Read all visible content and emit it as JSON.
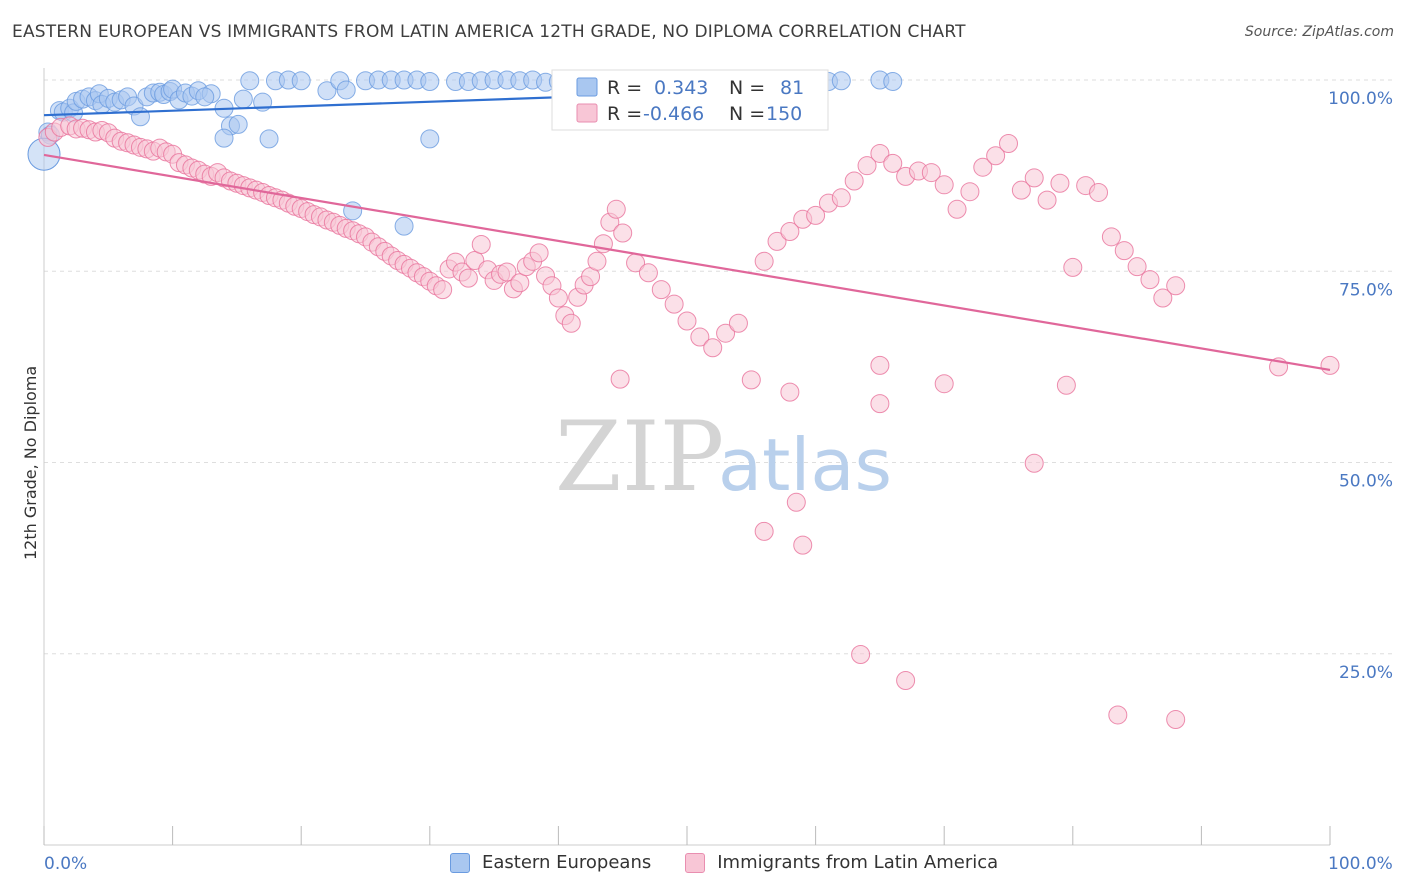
{
  "header": {
    "title": "EASTERN EUROPEAN VS IMMIGRANTS FROM LATIN AMERICA 12TH GRADE, NO DIPLOMA CORRELATION CHART",
    "source": "Source: ZipAtlas.com"
  },
  "watermark": {
    "zip": "ZIP",
    "atlas": "atlas"
  },
  "legend": {
    "r_label": "R =",
    "n_label": "N =",
    "rows": [
      {
        "r": "0.343",
        "n": "81",
        "color": "#5b8fd6"
      },
      {
        "r": "-0.466",
        "n": "150",
        "color": "#e8729b"
      }
    ]
  },
  "bottom_legend": [
    {
      "label": "Eastern Europeans",
      "color": "#a9c7f0",
      "border": "#6a9be0"
    },
    {
      "label": "Immigrants from Latin America",
      "color": "#f8c6d6",
      "border": "#e98eb0"
    }
  ],
  "chart_data": {
    "type": "scatter",
    "title": "EASTERN EUROPEAN VS IMMIGRANTS FROM LATIN AMERICA 12TH GRADE, NO DIPLOMA CORRELATION CHART",
    "xlabel": "",
    "ylabel": "12th Grade, No Diploma",
    "xlim": [
      0,
      100
    ],
    "ylim": [
      0,
      100
    ],
    "x_tick_labels": [
      "0.0%",
      "100.0%"
    ],
    "y_ticks": [
      25,
      50,
      75,
      100
    ],
    "y_tick_labels": [
      "25.0%",
      "50.0%",
      "75.0%",
      "100.0%"
    ],
    "grid": true,
    "legend_placement": "top-center",
    "series": [
      {
        "name": "Eastern Europeans",
        "color": "#6a9be0",
        "fill": "#a9c7f0",
        "r": 0.343,
        "n": 81,
        "trend": {
          "x": [
            0,
            58
          ],
          "y": [
            95.4,
            98.8
          ]
        },
        "points": [
          [
            0.3,
            93.2
          ],
          [
            0.5,
            92.8
          ],
          [
            1.2,
            96
          ],
          [
            1.5,
            95.8
          ],
          [
            2,
            96.3
          ],
          [
            2.3,
            95.7
          ],
          [
            2.5,
            97.2
          ],
          [
            3,
            97.5
          ],
          [
            3.5,
            97.8
          ],
          [
            4,
            97.3
          ],
          [
            4.3,
            98.2
          ],
          [
            4.5,
            96.8
          ],
          [
            5,
            97.6
          ],
          [
            5.5,
            97.1
          ],
          [
            6,
            97.4
          ],
          [
            6.5,
            97.8
          ],
          [
            7,
            96.6
          ],
          [
            7.5,
            95.2
          ],
          [
            8,
            97.8
          ],
          [
            8.5,
            98.3
          ],
          [
            9,
            98.4
          ],
          [
            9.3,
            98.1
          ],
          [
            9.8,
            98.5
          ],
          [
            10,
            98.8
          ],
          [
            10.5,
            97.4
          ],
          [
            11,
            98.3
          ],
          [
            11.5,
            97.9
          ],
          [
            12,
            98.6
          ],
          [
            13,
            98.2
          ],
          [
            14,
            96.3
          ],
          [
            14.5,
            94
          ],
          [
            15.1,
            94.2
          ],
          [
            15.5,
            97.5
          ],
          [
            16,
            99.9
          ],
          [
            17,
            97.1
          ],
          [
            18,
            99.9
          ],
          [
            19,
            100
          ],
          [
            20,
            99.9
          ],
          [
            22,
            98.6
          ],
          [
            23,
            99.9
          ],
          [
            23.5,
            98.7
          ],
          [
            25,
            99.9
          ],
          [
            26,
            100
          ],
          [
            27,
            100
          ],
          [
            28,
            100
          ],
          [
            29,
            100
          ],
          [
            30,
            99.8
          ],
          [
            32,
            99.8
          ],
          [
            33,
            99.8
          ],
          [
            34,
            99.9
          ],
          [
            35,
            100
          ],
          [
            36,
            100
          ],
          [
            37,
            99.9
          ],
          [
            38,
            100
          ],
          [
            39,
            99.7
          ],
          [
            40,
            99.8
          ],
          [
            41,
            99.9
          ],
          [
            42,
            99.8
          ],
          [
            43,
            98.5
          ],
          [
            44,
            98.7
          ],
          [
            45,
            100
          ],
          [
            47,
            99.9
          ],
          [
            48,
            99.8
          ],
          [
            50,
            99.8
          ],
          [
            52,
            99.9
          ],
          [
            54,
            99.8
          ],
          [
            55,
            99.6
          ],
          [
            56,
            99.2
          ],
          [
            57,
            99.5
          ],
          [
            59,
            99.6
          ],
          [
            60,
            100
          ],
          [
            61,
            99.8
          ],
          [
            62,
            99.9
          ],
          [
            65,
            100
          ],
          [
            66,
            99.8
          ],
          [
            12.5,
            97.8
          ],
          [
            14,
            92.4
          ],
          [
            17.5,
            92.3
          ],
          [
            24,
            82.9
          ],
          [
            28,
            80.9
          ],
          [
            30,
            92.3
          ]
        ]
      },
      {
        "name": "Immigrants from Latin America",
        "color": "#e8729b",
        "fill": "#f8c6d6",
        "r": -0.466,
        "n": 150,
        "trend": {
          "x": [
            0,
            100
          ],
          "y": [
            90.2,
            62.1
          ]
        },
        "points": [
          [
            0.3,
            92.5
          ],
          [
            0.8,
            93.2
          ],
          [
            1.3,
            93.8
          ],
          [
            2,
            94
          ],
          [
            2.5,
            93.6
          ],
          [
            3,
            93.7
          ],
          [
            3.5,
            93.5
          ],
          [
            4,
            93.2
          ],
          [
            4.5,
            93.4
          ],
          [
            5,
            93.1
          ],
          [
            5.5,
            92.4
          ],
          [
            6,
            92
          ],
          [
            6.5,
            91.8
          ],
          [
            7,
            91.5
          ],
          [
            7.5,
            91.2
          ],
          [
            8,
            91
          ],
          [
            8.5,
            90.7
          ],
          [
            9,
            91.1
          ],
          [
            9.5,
            90.6
          ],
          [
            10,
            90.3
          ],
          [
            10.5,
            89.2
          ],
          [
            11,
            88.9
          ],
          [
            11.5,
            88.5
          ],
          [
            12,
            88.2
          ],
          [
            12.5,
            87.7
          ],
          [
            13,
            87.4
          ],
          [
            13.5,
            87.9
          ],
          [
            14,
            87.2
          ],
          [
            14.5,
            86.8
          ],
          [
            15,
            86.5
          ],
          [
            15.5,
            86.2
          ],
          [
            16,
            85.9
          ],
          [
            16.5,
            85.6
          ],
          [
            17,
            85.3
          ],
          [
            17.5,
            84.9
          ],
          [
            18,
            84.6
          ],
          [
            18.5,
            84.3
          ],
          [
            19,
            83.9
          ],
          [
            19.5,
            83.5
          ],
          [
            20,
            83.2
          ],
          [
            20.5,
            82.8
          ],
          [
            21,
            82.4
          ],
          [
            21.5,
            82.1
          ],
          [
            22,
            81.7
          ],
          [
            22.5,
            81.4
          ],
          [
            23,
            81
          ],
          [
            23.5,
            80.6
          ],
          [
            24,
            80.3
          ],
          [
            24.5,
            79.9
          ],
          [
            25,
            79.5
          ],
          [
            25.5,
            78.8
          ],
          [
            26,
            78.2
          ],
          [
            26.5,
            77.6
          ],
          [
            27,
            77
          ],
          [
            27.5,
            76.4
          ],
          [
            28,
            75.9
          ],
          [
            28.5,
            75.4
          ],
          [
            29,
            74.8
          ],
          [
            29.5,
            74.3
          ],
          [
            30,
            73.7
          ],
          [
            30.5,
            73.1
          ],
          [
            31,
            72.6
          ],
          [
            31.5,
            75.3
          ],
          [
            32,
            76.2
          ],
          [
            32.5,
            74.9
          ],
          [
            33,
            74.1
          ],
          [
            33.5,
            76.4
          ],
          [
            34,
            78.5
          ],
          [
            34.5,
            75.2
          ],
          [
            35,
            73.8
          ],
          [
            35.5,
            74.6
          ],
          [
            36,
            74.9
          ],
          [
            36.5,
            72.7
          ],
          [
            37,
            73.5
          ],
          [
            37.5,
            75.6
          ],
          [
            38,
            76.3
          ],
          [
            38.5,
            77.4
          ],
          [
            39,
            74.4
          ],
          [
            39.5,
            73.1
          ],
          [
            40,
            71.5
          ],
          [
            40.5,
            69.2
          ],
          [
            41,
            68.2
          ],
          [
            41.5,
            71.6
          ],
          [
            42,
            73.2
          ],
          [
            42.5,
            74.3
          ],
          [
            43,
            76.3
          ],
          [
            43.5,
            78.6
          ],
          [
            44,
            81.4
          ],
          [
            44.5,
            83.1
          ],
          [
            45,
            80
          ],
          [
            46,
            76.1
          ],
          [
            47,
            74.8
          ],
          [
            48,
            72.6
          ],
          [
            49,
            70.7
          ],
          [
            50,
            68.5
          ],
          [
            51,
            66.4
          ],
          [
            52,
            65
          ],
          [
            53,
            66.9
          ],
          [
            54,
            68.2
          ],
          [
            55,
            60.8
          ],
          [
            56,
            76.3
          ],
          [
            57,
            78.9
          ],
          [
            58,
            80.2
          ],
          [
            59,
            81.8
          ],
          [
            60,
            82.3
          ],
          [
            61,
            83.9
          ],
          [
            62,
            84.6
          ],
          [
            63,
            86.8
          ],
          [
            64,
            88.8
          ],
          [
            65,
            90.4
          ],
          [
            66,
            89.1
          ],
          [
            67,
            87.4
          ],
          [
            68,
            88.1
          ],
          [
            69,
            87.9
          ],
          [
            70,
            86.3
          ],
          [
            71,
            83.1
          ],
          [
            72,
            85.4
          ],
          [
            73,
            88.6
          ],
          [
            74,
            90.1
          ],
          [
            75,
            91.7
          ],
          [
            76,
            85.6
          ],
          [
            77,
            87.2
          ],
          [
            78,
            84.3
          ],
          [
            79,
            86.5
          ],
          [
            80,
            75.5
          ],
          [
            81,
            86.2
          ],
          [
            82,
            85.3
          ],
          [
            83,
            79.5
          ],
          [
            84,
            77.7
          ],
          [
            85,
            75.6
          ],
          [
            86,
            73.9
          ],
          [
            87,
            71.5
          ],
          [
            88,
            73.1
          ],
          [
            44.8,
            60.9
          ],
          [
            58,
            59.2
          ],
          [
            65,
            62.7
          ],
          [
            77,
            49.9
          ],
          [
            58.5,
            44.8
          ],
          [
            56,
            41
          ],
          [
            59,
            39.2
          ],
          [
            63.5,
            24.9
          ],
          [
            67,
            21.5
          ],
          [
            83.5,
            17
          ],
          [
            88,
            16.4
          ],
          [
            96,
            62.5
          ],
          [
            100,
            62.7
          ],
          [
            79.5,
            60.1
          ],
          [
            70,
            60.3
          ],
          [
            65,
            57.7
          ]
        ]
      }
    ]
  }
}
